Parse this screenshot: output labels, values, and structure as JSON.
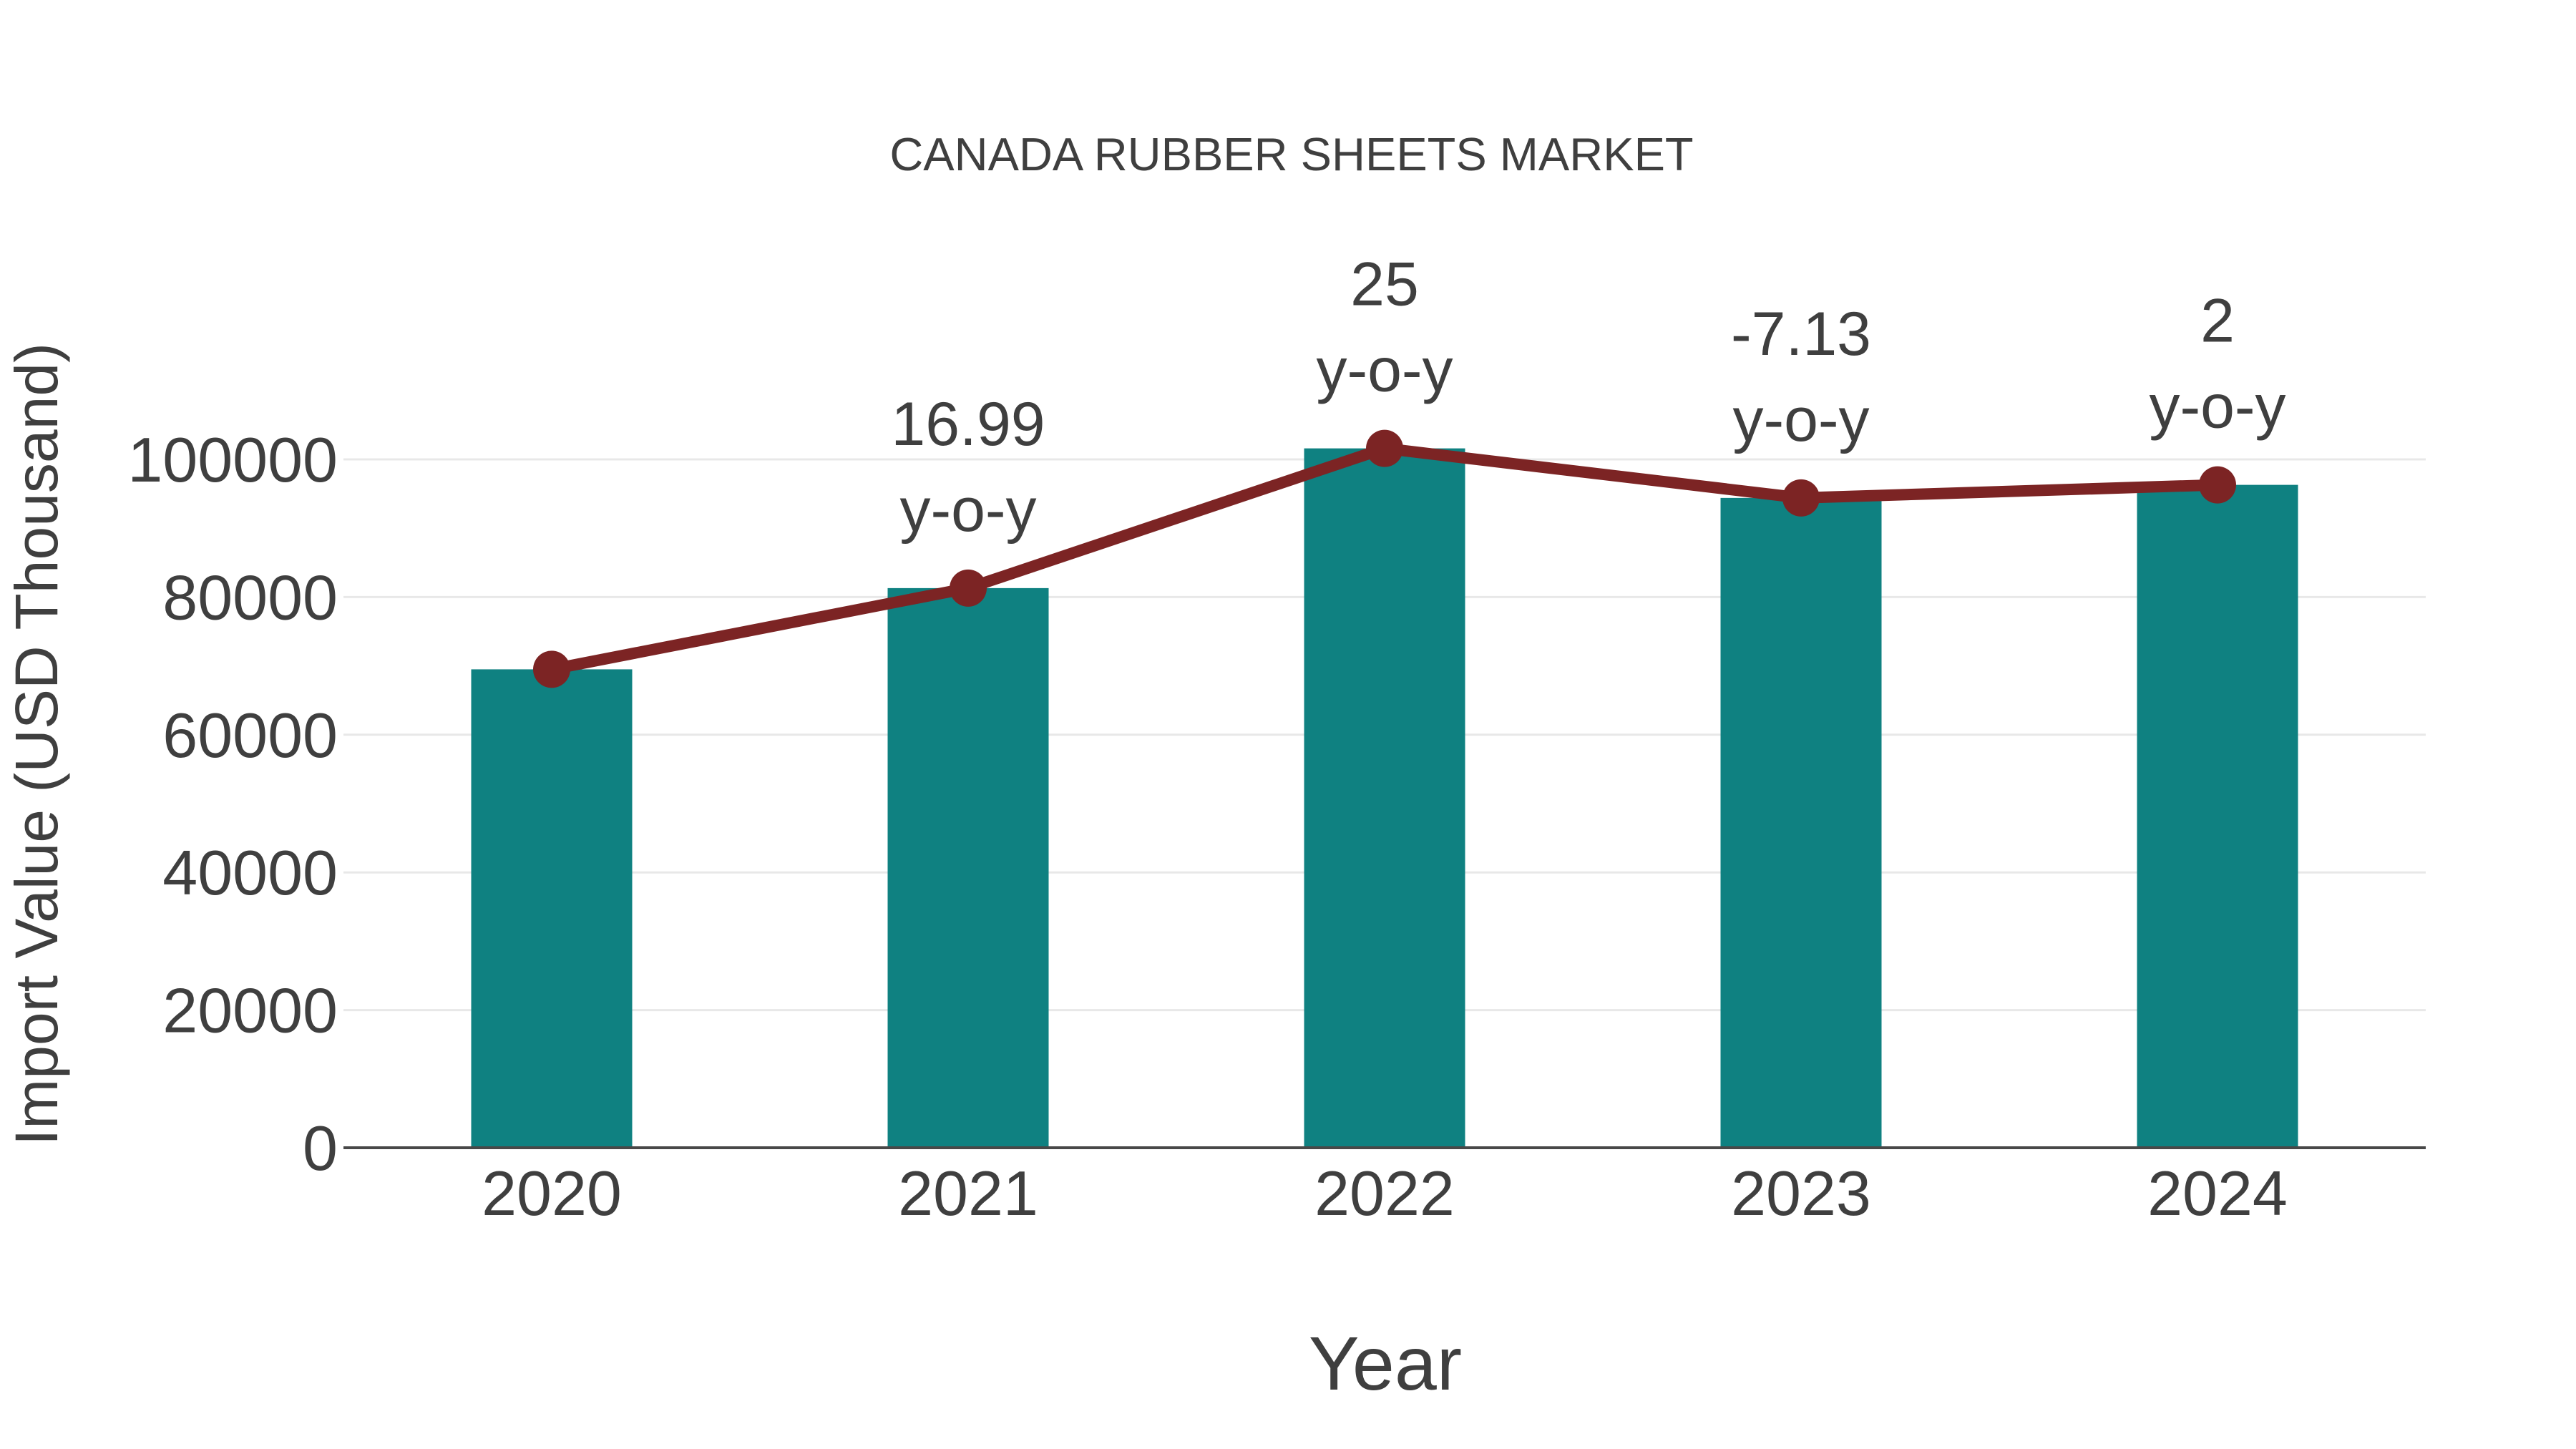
{
  "title": "CANADA RUBBER SHEETS MARKET",
  "colors": {
    "bar": "#0F8181",
    "line": "#7C2424",
    "text": "#3F3F3F",
    "grid": "#E8E8E8",
    "axis": "#484848",
    "background": "#FFFFFF"
  },
  "chart_data": {
    "type": "bar",
    "title": "CANADA RUBBER SHEETS MARKET",
    "xlabel": "Year",
    "ylabel": "Import Value (USD Thousand)",
    "categories": [
      "2020",
      "2021",
      "2022",
      "2023",
      "2024"
    ],
    "series": [
      {
        "name": "Import Value (USD Thousand)",
        "type": "bar",
        "color": "#0F8181",
        "values": [
          69500,
          81300,
          101600,
          94400,
          96300
        ]
      },
      {
        "name": "y-o-y growth (%)",
        "type": "line",
        "color": "#7C2424",
        "values": [
          69500,
          81300,
          101600,
          94400,
          96300
        ],
        "point_labels": [
          null,
          "16.99",
          "25",
          "-7.13",
          "2"
        ],
        "label_suffix": "y-o-y"
      }
    ],
    "yticks": [
      0,
      20000,
      40000,
      60000,
      80000,
      100000
    ],
    "ylim": [
      0,
      116000
    ],
    "grid": true,
    "legend": false
  }
}
